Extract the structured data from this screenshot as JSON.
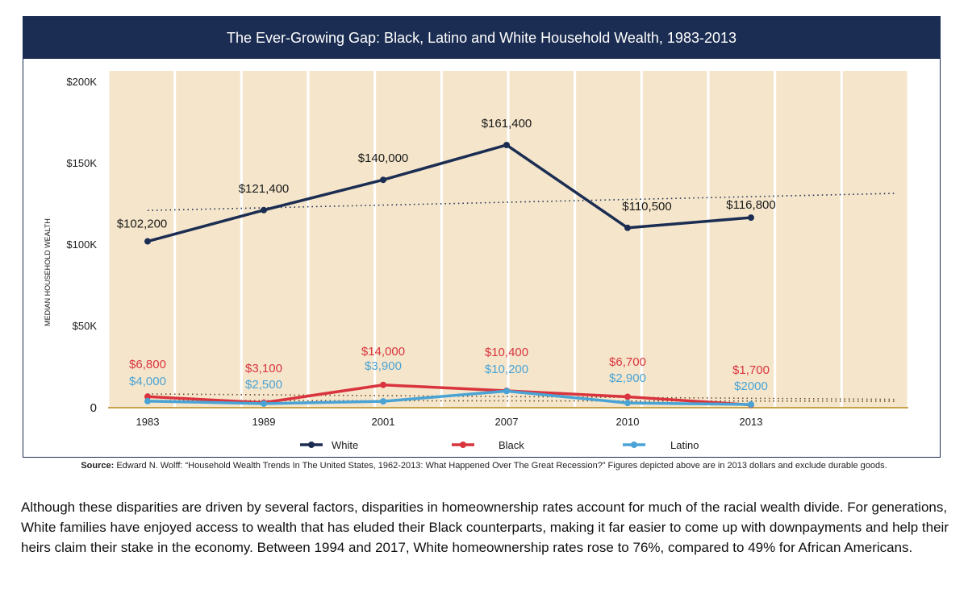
{
  "chart_data": {
    "type": "line",
    "title": "The Ever-Growing Gap: Black, Latino and White Household Wealth, 1983-2013",
    "xlabel": "",
    "ylabel": "MEDIAN HOUSEHOLD WEALTH",
    "categories": [
      "1983",
      "1989",
      "2001",
      "2007",
      "2010",
      "2013"
    ],
    "ylim": [
      0,
      200000
    ],
    "yticks": [
      {
        "value": 0,
        "label": "0"
      },
      {
        "value": 50000,
        "label": "$50K"
      },
      {
        "value": 100000,
        "label": "$100K"
      },
      {
        "value": 150000,
        "label": "$150K"
      },
      {
        "value": 200000,
        "label": "$200K"
      }
    ],
    "legend_position": "bottom",
    "series": [
      {
        "name": "White",
        "color": "#1b2d52",
        "values": [
          102200,
          121400,
          140000,
          161400,
          110500,
          116800
        ],
        "labels": [
          "$102,200",
          "$121,400",
          "$140,000",
          "$161,400",
          "$110,500",
          "$116,800"
        ]
      },
      {
        "name": "Black",
        "color": "#d9343e",
        "values": [
          6800,
          3100,
          14000,
          10400,
          6700,
          1700
        ],
        "labels": [
          "$6,800",
          "$3,100",
          "$14,000",
          "$10,400",
          "$6,700",
          "$1,700"
        ]
      },
      {
        "name": "Latino",
        "color": "#4aa3d5",
        "values": [
          4000,
          2500,
          3900,
          10200,
          2900,
          2000
        ],
        "labels": [
          "$4,000",
          "$2,500",
          "$3,900",
          "$10,200",
          "$2,900",
          "$2000"
        ]
      }
    ]
  },
  "source": {
    "prefix": "Source:",
    "text": " Edward N. Wolff: “Household Wealth Trends In The United States, 1962-2013: What Happened Over The Great Recession?” Figures depicted above are in 2013 dollars and exclude durable goods."
  },
  "paragraph": "Although these disparities are driven by several factors, disparities in homeownership rates account for much of the racial wealth divide. For generations, White families have enjoyed access to wealth that has eluded their Black counterparts, making it far easier to come up with downpayments and help their heirs claim their stake in the economy. Between 1994 and 2017, White homeownership rates rose to 76%, compared to 49% for African Americans."
}
